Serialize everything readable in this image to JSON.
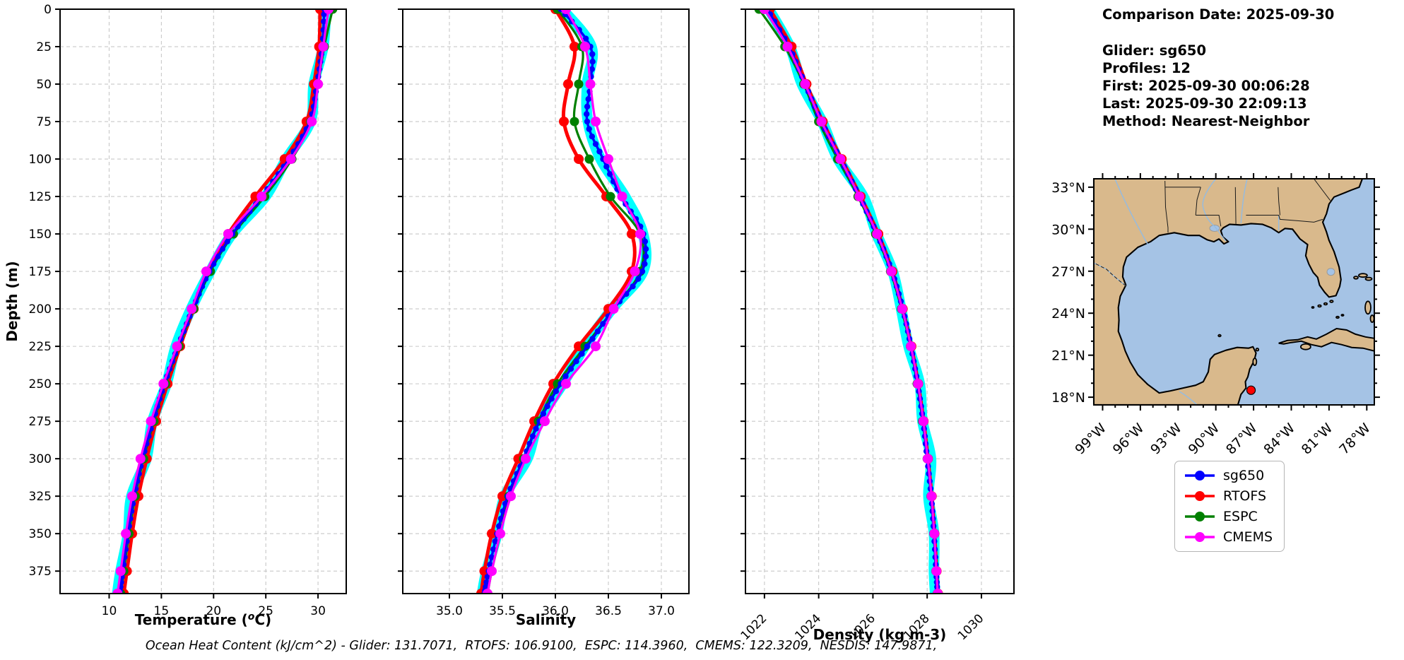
{
  "info_panel": {
    "comparison_date": "Comparison Date: 2025-09-30",
    "glider": "Glider: sg650",
    "profiles": "Profiles: 12",
    "first": "First: 2025-09-30 00:06:28",
    "last": "Last: 2025-09-30 22:09:13",
    "method": "Method: Nearest-Neighbor"
  },
  "caption": "Ocean Heat Content (kJ/cm^2) - Glider: 131.7071,  RTOFS: 106.9100,  ESPC: 114.3960,  CMEMS: 122.3209,  NESDIS: 147.9871,",
  "legend": {
    "items": [
      {
        "label": "sg650",
        "color": "#0000ff"
      },
      {
        "label": "RTOFS",
        "color": "#ff0000"
      },
      {
        "label": "ESPC",
        "color": "#008000"
      },
      {
        "label": "CMEMS",
        "color": "#ff00ff"
      }
    ]
  },
  "chart_data": [
    {
      "type": "line",
      "id": "temperature",
      "title": "",
      "xlabel": "Temperature (^oC)",
      "ylabel": "Depth (m)",
      "xlim": [
        5.3,
        32.7
      ],
      "ylim": [
        0,
        390
      ],
      "y_inverted": true,
      "grid": true,
      "xticks": [
        10,
        15,
        20,
        25,
        30
      ],
      "xtick_labels": [
        "10",
        "15",
        "20",
        "25",
        "30"
      ],
      "rotate_xticks": false,
      "yticks": [
        0,
        25,
        50,
        75,
        100,
        125,
        150,
        175,
        200,
        225,
        250,
        275,
        300,
        325,
        350,
        375
      ],
      "ytick_labels": [
        "0",
        "25",
        "50",
        "75",
        "100",
        "125",
        "150",
        "175",
        "200",
        "225",
        "250",
        "275",
        "300",
        "325",
        "350",
        "375"
      ],
      "categories": [
        0,
        25,
        50,
        75,
        100,
        125,
        150,
        175,
        200,
        225,
        250,
        275,
        300,
        325,
        350,
        375,
        390
      ],
      "series": [
        {
          "name": "sg650",
          "color": "#0000ff",
          "envelope_color": "#00ffff",
          "values": [
            30.6,
            30.4,
            29.9,
            29.2,
            27.2,
            24.6,
            21.8,
            19.6,
            18.0,
            16.6,
            15.3,
            14.2,
            13.2,
            12.4,
            11.8,
            11.3,
            11.0
          ]
        },
        {
          "name": "RTOFS",
          "color": "#ff0000",
          "values": [
            30.2,
            30.1,
            29.6,
            28.9,
            26.8,
            24.0,
            21.4,
            19.5,
            18.1,
            16.8,
            15.6,
            14.5,
            13.6,
            12.8,
            12.2,
            11.7,
            11.4
          ]
        },
        {
          "name": "ESPC",
          "color": "#008000",
          "values": [
            31.4,
            30.6,
            30.0,
            29.3,
            27.5,
            24.9,
            21.9,
            19.7,
            18.1,
            16.7,
            15.4,
            14.3,
            13.3,
            12.5,
            11.9,
            11.4,
            11.1
          ]
        },
        {
          "name": "CMEMS",
          "color": "#ff00ff",
          "values": [
            31.0,
            30.5,
            30.0,
            29.4,
            27.4,
            24.6,
            21.4,
            19.3,
            17.9,
            16.5,
            15.2,
            14.0,
            13.0,
            12.2,
            11.6,
            11.1,
            10.8
          ]
        }
      ]
    },
    {
      "type": "line",
      "id": "salinity",
      "title": "",
      "xlabel": "Salinity",
      "ylabel": "",
      "xlim": [
        34.56,
        37.26
      ],
      "ylim": [
        0,
        390
      ],
      "y_inverted": true,
      "grid": true,
      "xticks": [
        35.0,
        35.5,
        36.0,
        36.5,
        37.0
      ],
      "xtick_labels": [
        "35.0",
        "35.5",
        "36.0",
        "36.5",
        "37.0"
      ],
      "rotate_xticks": false,
      "yticks": [
        0,
        25,
        50,
        75,
        100,
        125,
        150,
        175,
        200,
        225,
        250,
        275,
        300,
        325,
        350,
        375
      ],
      "ytick_labels": null,
      "categories": [
        0,
        25,
        50,
        75,
        100,
        125,
        150,
        175,
        200,
        225,
        250,
        275,
        300,
        325,
        350,
        375,
        390
      ],
      "series": [
        {
          "name": "sg650",
          "color": "#0000ff",
          "envelope_color": "#00ffff",
          "values": [
            36.05,
            36.33,
            36.33,
            36.3,
            36.45,
            36.62,
            36.83,
            36.82,
            36.55,
            36.3,
            36.05,
            35.85,
            35.7,
            35.55,
            35.45,
            35.37,
            35.33
          ]
        },
        {
          "name": "RTOFS",
          "color": "#ff0000",
          "values": [
            36.0,
            36.18,
            36.12,
            36.08,
            36.22,
            36.48,
            36.72,
            36.72,
            36.5,
            36.22,
            35.98,
            35.8,
            35.65,
            35.5,
            35.4,
            35.33,
            35.3
          ]
        },
        {
          "name": "ESPC",
          "color": "#008000",
          "values": [
            36.02,
            36.25,
            36.22,
            36.18,
            36.32,
            36.52,
            36.8,
            36.8,
            36.55,
            36.28,
            36.02,
            35.84,
            35.7,
            35.56,
            35.48,
            35.4,
            35.36
          ]
        },
        {
          "name": "CMEMS",
          "color": "#ff00ff",
          "values": [
            36.1,
            36.28,
            36.33,
            36.38,
            36.5,
            36.63,
            36.8,
            36.75,
            36.55,
            36.38,
            36.1,
            35.9,
            35.72,
            35.58,
            35.48,
            35.4,
            35.36
          ]
        }
      ]
    },
    {
      "type": "line",
      "id": "density",
      "title": "",
      "xlabel": "Density (kg m-3)",
      "ylabel": "",
      "xlim": [
        1021.3,
        1031.2
      ],
      "ylim": [
        0,
        390
      ],
      "y_inverted": true,
      "grid": true,
      "xticks": [
        1022,
        1024,
        1026,
        1028,
        1030
      ],
      "xtick_labels": [
        "1022",
        "1024",
        "1026",
        "1028",
        "1030"
      ],
      "rotate_xticks": true,
      "yticks": [
        0,
        25,
        50,
        75,
        100,
        125,
        150,
        175,
        200,
        225,
        250,
        275,
        300,
        325,
        350,
        375
      ],
      "ytick_labels": null,
      "categories": [
        0,
        25,
        50,
        75,
        100,
        125,
        150,
        175,
        200,
        225,
        250,
        275,
        300,
        325,
        350,
        375,
        390
      ],
      "series": [
        {
          "name": "sg650",
          "color": "#0000ff",
          "envelope_color": "#00ffff",
          "values": [
            1022.1,
            1022.9,
            1023.5,
            1024.1,
            1024.8,
            1025.5,
            1026.15,
            1026.7,
            1027.1,
            1027.4,
            1027.65,
            1027.85,
            1028.0,
            1028.15,
            1028.25,
            1028.33,
            1028.38
          ]
        },
        {
          "name": "RTOFS",
          "color": "#ff0000",
          "values": [
            1022.2,
            1023.0,
            1023.55,
            1024.15,
            1024.85,
            1025.55,
            1026.2,
            1026.72,
            1027.1,
            1027.42,
            1027.67,
            1027.87,
            1028.03,
            1028.17,
            1028.27,
            1028.35,
            1028.4
          ]
        },
        {
          "name": "ESPC",
          "color": "#008000",
          "values": [
            1021.8,
            1022.75,
            1023.45,
            1024.0,
            1024.7,
            1025.45,
            1026.1,
            1026.65,
            1027.05,
            1027.38,
            1027.63,
            1027.83,
            1028.0,
            1028.14,
            1028.24,
            1028.32,
            1028.37
          ]
        },
        {
          "name": "CMEMS",
          "color": "#ff00ff",
          "values": [
            1022.0,
            1022.85,
            1023.5,
            1024.1,
            1024.8,
            1025.5,
            1026.15,
            1026.68,
            1027.08,
            1027.4,
            1027.66,
            1027.86,
            1028.02,
            1028.16,
            1028.26,
            1028.34,
            1028.39
          ]
        }
      ]
    }
  ],
  "map": {
    "land_color": "#d9b98c",
    "water_color": "#a5c3e5",
    "coast_color": "#000000",
    "river_color": "#93bbe2",
    "lon_range": [
      -99.7,
      -77.4
    ],
    "lat_range": [
      17.45,
      33.6
    ],
    "lat_ticks": [
      {
        "value": 33,
        "label": "33°N"
      },
      {
        "value": 30,
        "label": "30°N"
      },
      {
        "value": 27,
        "label": "27°N"
      },
      {
        "value": 24,
        "label": "24°N"
      },
      {
        "value": 21,
        "label": "21°N"
      },
      {
        "value": 18,
        "label": "18°N"
      }
    ],
    "lon_ticks": [
      {
        "value": -99,
        "label": "99°W"
      },
      {
        "value": -96,
        "label": "96°W"
      },
      {
        "value": -93,
        "label": "93°W"
      },
      {
        "value": -90,
        "label": "90°W"
      },
      {
        "value": -87,
        "label": "87°W"
      },
      {
        "value": -84,
        "label": "84°W"
      },
      {
        "value": -81,
        "label": "81°W"
      },
      {
        "value": -78,
        "label": "78°W"
      }
    ],
    "marker": {
      "lon": -87.2,
      "lat": 18.5,
      "color": "#ff0000"
    }
  }
}
